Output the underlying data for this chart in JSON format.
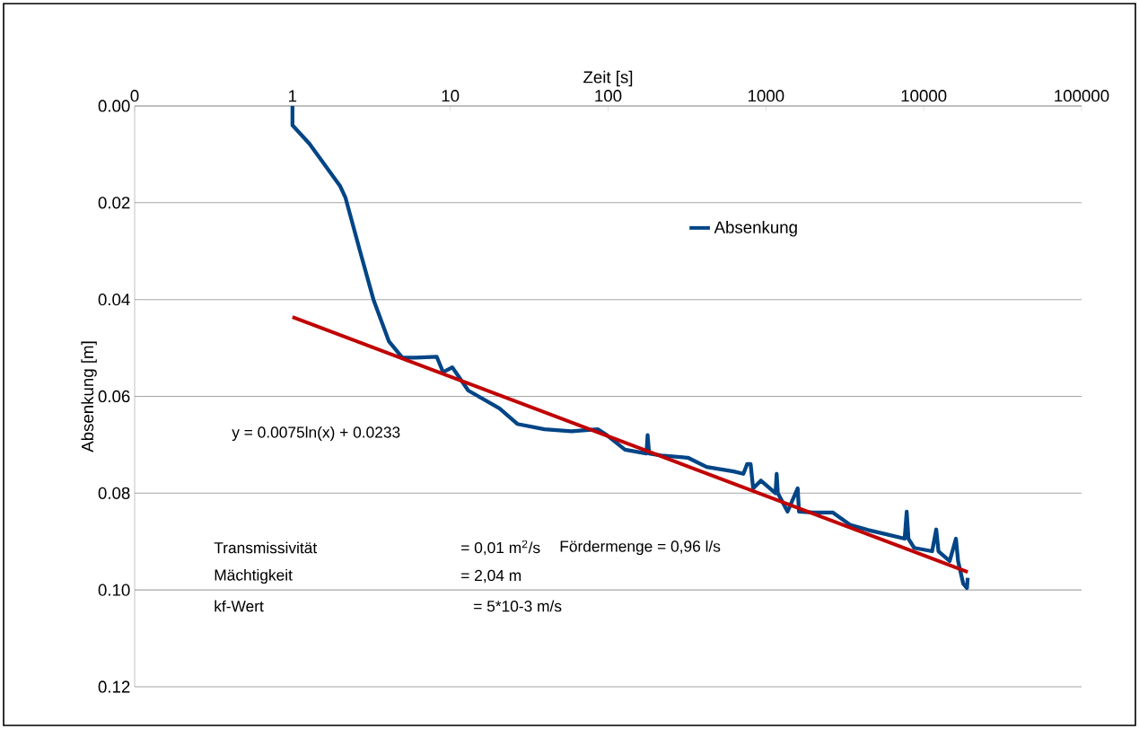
{
  "chart_data": {
    "type": "line",
    "xlabel": "Zeit [s]",
    "ylabel": "Absenkung [m]",
    "log": "x",
    "xlim": [
      0.1,
      100000
    ],
    "xticks": [
      {
        "value": 0.1,
        "label": "0"
      },
      1,
      10,
      100,
      1000,
      10000,
      100000
    ],
    "ylim": [
      0.12,
      0
    ],
    "yticks": [
      {
        "value": 0,
        "label": "0.00"
      },
      {
        "value": 0.02,
        "label": "0.02"
      },
      {
        "value": 0.04,
        "label": "0.04"
      },
      {
        "value": 0.06,
        "label": "0.06"
      },
      {
        "value": 0.08,
        "label": "0.08"
      },
      {
        "value": 0.1,
        "label": "0.10"
      },
      {
        "value": 0.12,
        "label": "0.12"
      }
    ],
    "grid": "y",
    "legend": "top right",
    "series": [
      {
        "name": "Absenkung",
        "color": "#004586",
        "x": [
          1,
          1,
          1.28,
          2.0,
          2.17,
          2.68,
          3.26,
          4.08,
          4.97,
          6.06,
          8.2,
          9,
          10.3,
          13,
          20.5,
          26.6,
          39.5,
          58.6,
          86,
          98,
          128,
          175,
          178,
          182,
          217,
          322,
          421,
          625,
          720,
          760,
          800,
          830,
          930,
          1150,
          1170,
          1190,
          1370,
          1590,
          1620,
          2000,
          2660,
          3440,
          4440,
          5800,
          7570,
          7800,
          8000,
          8700,
          11300,
          12000,
          12400,
          14600,
          16000,
          16500,
          17800,
          18800,
          19000
        ],
        "values": [
          0,
          0.004,
          0.0078,
          0.0165,
          0.019,
          0.03,
          0.04,
          0.0486,
          0.052,
          0.052,
          0.0518,
          0.055,
          0.054,
          0.0588,
          0.0625,
          0.0657,
          0.0668,
          0.0672,
          0.0668,
          0.068,
          0.071,
          0.0718,
          0.068,
          0.0718,
          0.0722,
          0.0727,
          0.0746,
          0.0755,
          0.076,
          0.074,
          0.074,
          0.079,
          0.0774,
          0.08,
          0.076,
          0.08,
          0.0838,
          0.079,
          0.0838,
          0.084,
          0.084,
          0.0866,
          0.0876,
          0.0885,
          0.0894,
          0.0838,
          0.0894,
          0.0913,
          0.092,
          0.0875,
          0.092,
          0.094,
          0.0894,
          0.094,
          0.0987,
          0.0996,
          0.0975
        ]
      },
      {
        "type": "line",
        "color": "#c00000",
        "x": [
          1,
          19000
        ],
        "values": [
          0.0436,
          0.0963
        ]
      }
    ],
    "annotations": [
      "y = 0.0075ln(x) + 0.0233",
      "Transmissivität",
      "= 0,01 m$^{2}$/s",
      "Fördermenge = 0,96 l/s",
      "Mächtigkeit",
      "= 2,04 m",
      "kf-Wert",
      "= 5*10-3 m/s"
    ]
  }
}
